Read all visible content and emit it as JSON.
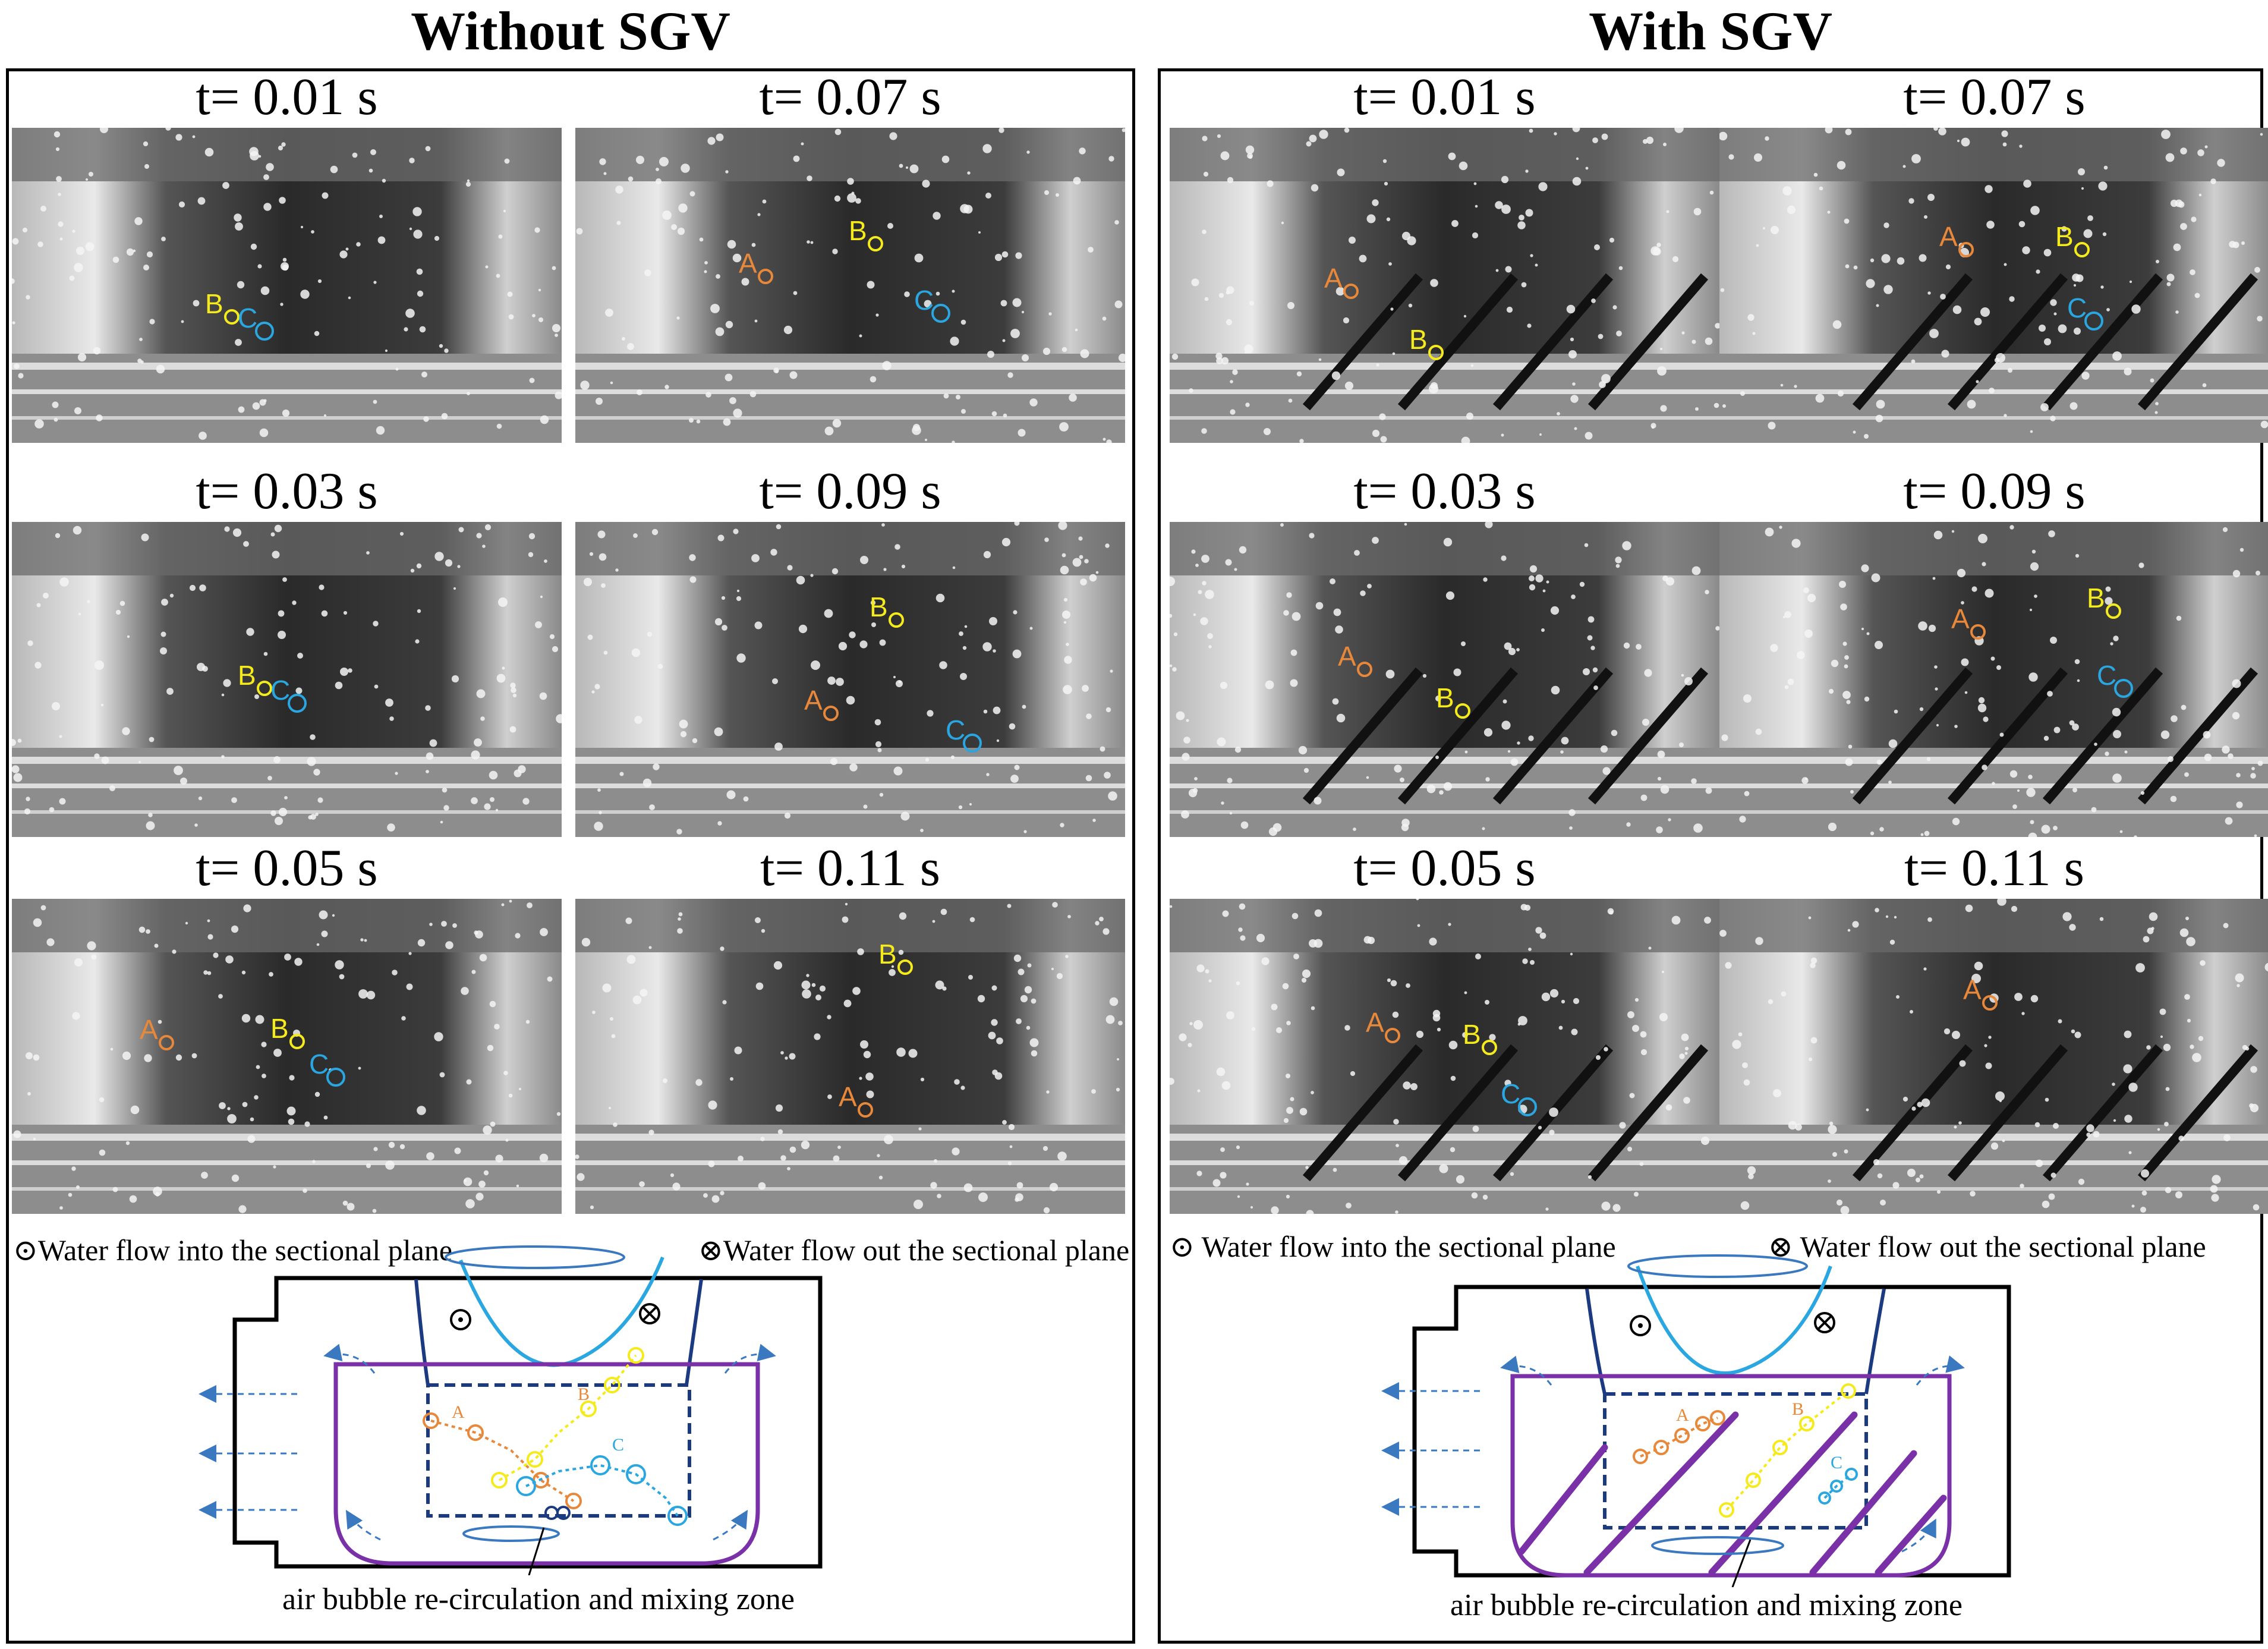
{
  "headings": {
    "left": "Without SGV",
    "right": "With SGV"
  },
  "frames_left": [
    {
      "time": "t= 0.01 s",
      "markers": [
        {
          "id": "B",
          "label": "B"
        },
        {
          "id": "C",
          "label": "C"
        }
      ]
    },
    {
      "time": "t= 0.07 s",
      "markers": [
        {
          "id": "A",
          "label": "A"
        },
        {
          "id": "B",
          "label": "B"
        },
        {
          "id": "C",
          "label": "C"
        }
      ]
    },
    {
      "time": "t= 0.03 s",
      "markers": [
        {
          "id": "B",
          "label": "B"
        },
        {
          "id": "C",
          "label": "C"
        }
      ]
    },
    {
      "time": "t= 0.09 s",
      "markers": [
        {
          "id": "A",
          "label": "A"
        },
        {
          "id": "B",
          "label": "B"
        },
        {
          "id": "C",
          "label": "C"
        }
      ]
    },
    {
      "time": "t= 0.05 s",
      "markers": [
        {
          "id": "A",
          "label": "A"
        },
        {
          "id": "B",
          "label": "B"
        },
        {
          "id": "C",
          "label": "C"
        }
      ]
    },
    {
      "time": "t= 0.11 s",
      "markers": [
        {
          "id": "A",
          "label": "A"
        },
        {
          "id": "B",
          "label": "B"
        }
      ]
    }
  ],
  "frames_right": [
    {
      "time": "t= 0.01 s",
      "markers": [
        {
          "id": "A",
          "label": "A"
        },
        {
          "id": "B",
          "label": "B"
        }
      ]
    },
    {
      "time": "t= 0.07 s",
      "markers": [
        {
          "id": "A",
          "label": "A"
        },
        {
          "id": "B",
          "label": "B"
        },
        {
          "id": "C",
          "label": "C"
        }
      ]
    },
    {
      "time": "t= 0.03 s",
      "markers": [
        {
          "id": "A",
          "label": "A"
        },
        {
          "id": "B",
          "label": "B"
        }
      ]
    },
    {
      "time": "t= 0.09 s",
      "markers": [
        {
          "id": "A",
          "label": "A"
        },
        {
          "id": "B",
          "label": "B"
        },
        {
          "id": "C",
          "label": "C"
        }
      ]
    },
    {
      "time": "t= 0.05 s",
      "markers": [
        {
          "id": "A",
          "label": "A"
        },
        {
          "id": "B",
          "label": "B"
        },
        {
          "id": "C",
          "label": "C"
        }
      ]
    },
    {
      "time": "t= 0.11 s",
      "markers": [
        {
          "id": "A",
          "label": "A"
        }
      ]
    }
  ],
  "legend": {
    "into": "Water flow into the sectional plane",
    "out": "Water flow out the sectional plane",
    "into_symbol": "⊙",
    "out_symbol": "⊗"
  },
  "schematic": {
    "caption": "air bubble re-circulation and mixing zone",
    "track_labels": [
      "A",
      "B",
      "C"
    ]
  },
  "colors": {
    "marker_A": "#e8883a",
    "marker_B": "#f4ea1c",
    "marker_C": "#2aa6e0",
    "vessel": "#7a30a6",
    "inlet": "#2aa6e0",
    "guide_vane": "#7a30a6",
    "flow_arrow": "#3a78c0"
  }
}
